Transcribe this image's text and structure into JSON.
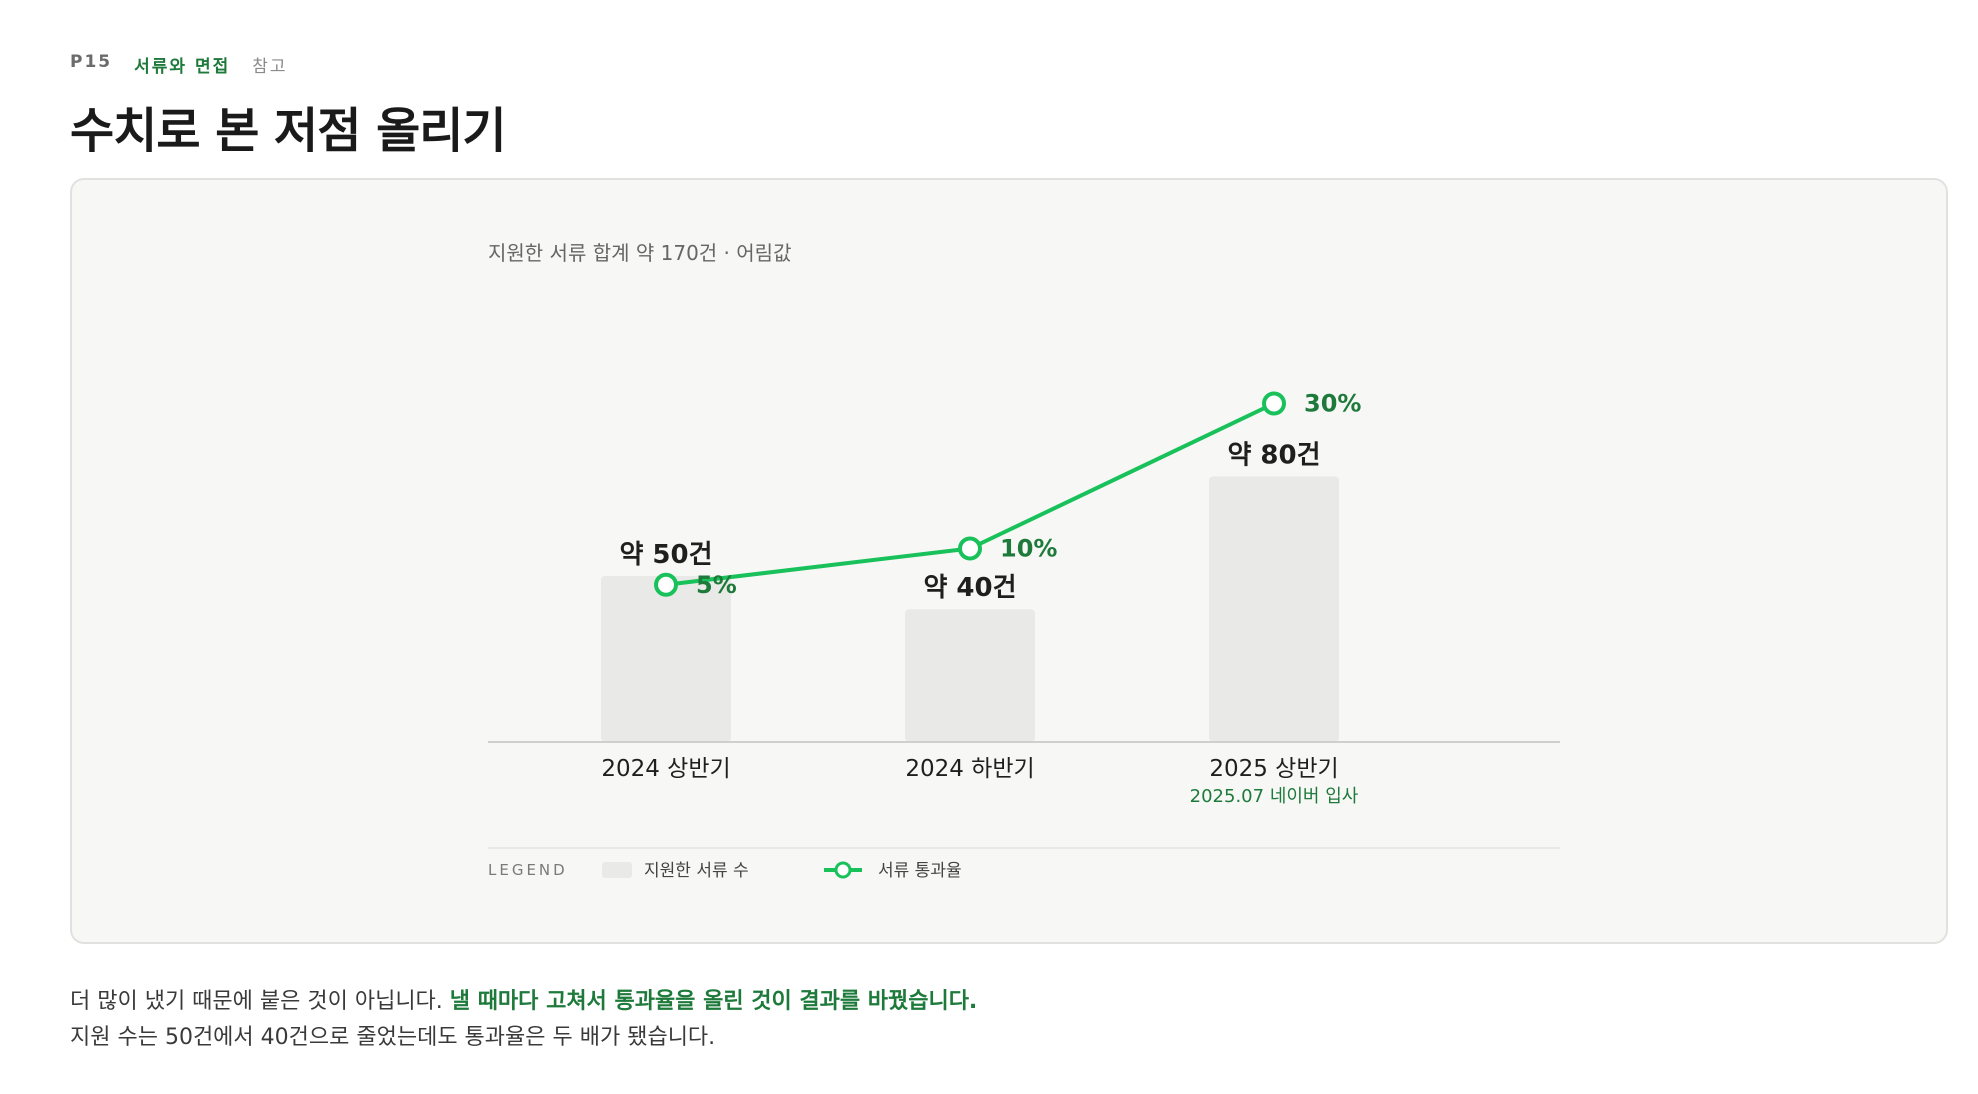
{
  "header": {
    "page": "P15",
    "section": "서류와 면접",
    "ref": "참고",
    "title": "수치로 본 저점 올리기"
  },
  "colors": {
    "accent": "#19c15a",
    "accent_dark": "#1e7a3a",
    "bar": "#e9eae8"
  },
  "chart_data": {
    "type": "bar",
    "title": "지원한 서류 합계 약 170건 · 어림값",
    "categories": [
      "2024 상반기",
      "2024 하반기",
      "2025 상반기"
    ],
    "category_notes": [
      "",
      "",
      "2025.07 네이버 입사"
    ],
    "series": [
      {
        "name": "지원한 서류 수",
        "type": "bar",
        "values": [
          50,
          40,
          80
        ],
        "labels": [
          "약 50건",
          "약 40건",
          "약 80건"
        ]
      },
      {
        "name": "서류 통과율",
        "type": "line",
        "values": [
          5,
          10,
          30
        ],
        "labels": [
          "5%",
          "10%",
          "30%"
        ]
      }
    ],
    "legend_title": "LEGEND",
    "legend_position": "bottom-left",
    "grid": false
  },
  "body": {
    "line1_plain": "더 많이 냈기 때문에 붙은 것이 아닙니다. ",
    "line1_highlight": "낼 때마다 고쳐서 통과율을 올린 것이 결과를 바꿨습니다.",
    "line2": "지원 수는 50건에서 40건으로 줄었는데도 통과율은 두 배가 됐습니다."
  }
}
